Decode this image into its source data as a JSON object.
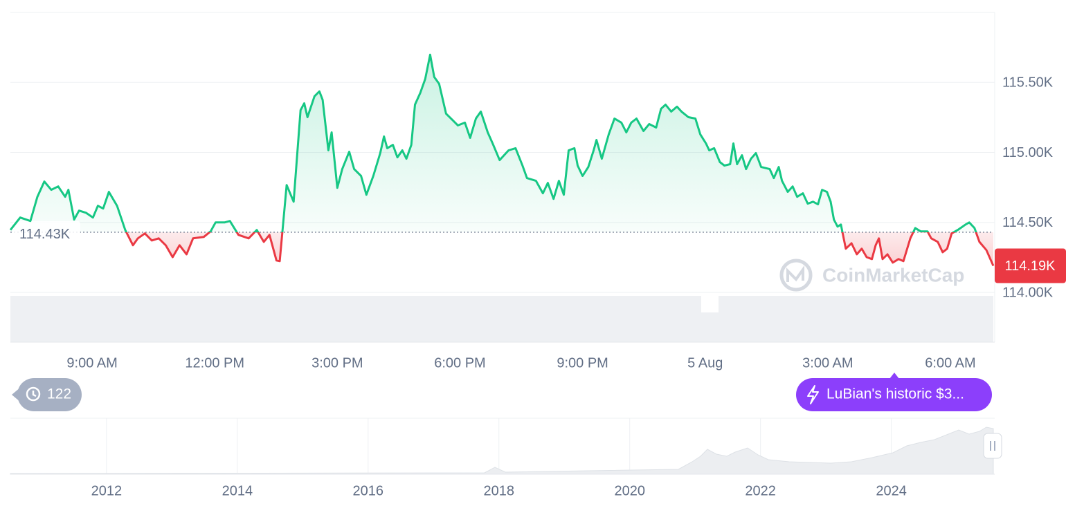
{
  "chart_data": [
    {
      "type": "line",
      "x": [
        7.0,
        7.24,
        7.49,
        7.66,
        7.83,
        8.0,
        8.17,
        8.34,
        8.42,
        8.56,
        8.68,
        8.85,
        9.02,
        9.14,
        9.27,
        9.41,
        9.61,
        9.81,
        10.0,
        10.12,
        10.29,
        10.46,
        10.63,
        10.8,
        10.97,
        11.14,
        11.31,
        11.47,
        11.73,
        11.9,
        12.02,
        12.24,
        12.37,
        12.58,
        12.83,
        13.03,
        13.2,
        13.34,
        13.51,
        13.59,
        13.76,
        13.93,
        14.1,
        14.19,
        14.27,
        14.44,
        14.56,
        14.64,
        14.78,
        14.86,
        15.0,
        15.12,
        15.29,
        15.41,
        15.58,
        15.71,
        15.88,
        16.05,
        16.14,
        16.22,
        16.36,
        16.47,
        16.59,
        16.69,
        16.81,
        16.9,
        17.03,
        17.15,
        17.27,
        17.37,
        17.49,
        17.66,
        17.83,
        17.95,
        18.12,
        18.25,
        18.39,
        18.51,
        18.68,
        18.8,
        18.97,
        19.19,
        19.36,
        19.53,
        19.64,
        19.86,
        20.03,
        20.15,
        20.29,
        20.42,
        20.54,
        20.66,
        20.8,
        20.88,
        21.0,
        21.14,
        21.27,
        21.34,
        21.47,
        21.64,
        21.78,
        21.95,
        22.07,
        22.19,
        22.32,
        22.49,
        22.63,
        22.8,
        22.92,
        23.03,
        23.17,
        23.31,
        23.42,
        23.59,
        23.76,
        23.88,
        24.02,
        24.1,
        24.22,
        24.36,
        24.47,
        24.61,
        24.69,
        24.78,
        24.9,
        25.0,
        25.12,
        25.24,
        25.37,
        25.58,
        25.68,
        25.8,
        25.88,
        26.02,
        26.14,
        26.25,
        26.39,
        26.51,
        26.64,
        26.76,
        26.86,
        26.98,
        27.07,
        27.15,
        27.24,
        27.32,
        27.44,
        27.58,
        27.71,
        27.83,
        27.95,
        28.08,
        28.17,
        28.25,
        28.34,
        28.46,
        28.59,
        28.73,
        28.85,
        29.02,
        29.14,
        29.27,
        29.44,
        29.53,
        29.69,
        29.81,
        29.92,
        30.03,
        30.2,
        30.37,
        30.46,
        30.59,
        30.71,
        30.88,
        31.05
      ],
      "values": [
        114446,
        114535,
        114510,
        114683,
        114792,
        114733,
        114757,
        114683,
        114733,
        114520,
        114584,
        114569,
        114535,
        114619,
        114599,
        114718,
        114619,
        114446,
        114337,
        114386,
        114421,
        114371,
        114386,
        114337,
        114252,
        114337,
        114272,
        114386,
        114396,
        114436,
        114500,
        114500,
        114510,
        114411,
        114386,
        114446,
        114361,
        114411,
        114228,
        114223,
        114767,
        114648,
        115302,
        115351,
        115252,
        115401,
        115436,
        115376,
        115015,
        115143,
        114747,
        114881,
        115005,
        114881,
        114832,
        114698,
        114832,
        114995,
        115114,
        115030,
        115054,
        114965,
        115015,
        114955,
        115054,
        115341,
        115426,
        115525,
        115698,
        115539,
        115490,
        115277,
        115228,
        115193,
        115213,
        115104,
        115242,
        115292,
        115143,
        115064,
        114945,
        115015,
        115030,
        114906,
        114817,
        114797,
        114708,
        114782,
        114668,
        114797,
        114698,
        115015,
        115030,
        114906,
        114832,
        114896,
        115015,
        115089,
        114955,
        115129,
        115242,
        115213,
        115143,
        115213,
        115242,
        115153,
        115203,
        115178,
        115312,
        115341,
        115292,
        115327,
        115292,
        115252,
        115242,
        115129,
        115064,
        115015,
        115030,
        114931,
        114906,
        114916,
        115064,
        114916,
        114980,
        114881,
        114955,
        114995,
        114896,
        114881,
        114817,
        114896,
        114797,
        114718,
        114757,
        114683,
        114708,
        114634,
        114648,
        114629,
        114733,
        114718,
        114648,
        114520,
        114470,
        114485,
        114312,
        114351,
        114272,
        114312,
        114252,
        114238,
        114337,
        114386,
        114238,
        114272,
        114213,
        114238,
        114223,
        114386,
        114460,
        114436,
        114436,
        114386,
        114361,
        114287,
        114312,
        114421,
        114450,
        114485,
        114500,
        114460,
        114361,
        114302,
        114190
      ],
      "color": "#16c784",
      "down_color": "#ea3943",
      "baseline": {
        "value": 114430,
        "label": "114.43K"
      },
      "current_price": {
        "value": 114190,
        "label": "114.19K"
      },
      "xlim": [
        7,
        31.05
      ],
      "xticks": [
        {
          "value": 9,
          "label": "9:00 AM"
        },
        {
          "value": 12,
          "label": "12:00 PM"
        },
        {
          "value": 15,
          "label": "3:00 PM"
        },
        {
          "value": 18,
          "label": "6:00 PM"
        },
        {
          "value": 21,
          "label": "9:00 PM"
        },
        {
          "value": 24,
          "label": "5 Aug"
        },
        {
          "value": 27,
          "label": "3:00 AM"
        },
        {
          "value": 30,
          "label": "6:00 AM"
        }
      ],
      "ylim": [
        114000,
        116000
      ],
      "yticks": [
        {
          "value": 114000,
          "label": "114.00K"
        },
        {
          "value": 114500,
          "label": "114.50K"
        },
        {
          "value": 115000,
          "label": "115.00K"
        },
        {
          "value": 115500,
          "label": "115.50K"
        }
      ],
      "grid": true
    },
    {
      "type": "navigator",
      "xlim": [
        2010.53,
        2025.56
      ],
      "xticks": [
        2012,
        2014,
        2016,
        2018,
        2020,
        2022,
        2024
      ],
      "grid": true
    }
  ],
  "ui": {
    "history_count": 122,
    "news_headline": "LuBian's historic $3...",
    "watermark": "CoinMarketCap"
  }
}
